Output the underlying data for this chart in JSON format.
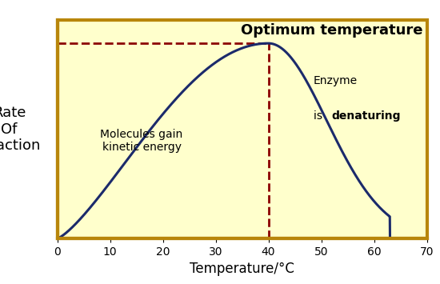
{
  "xlabel": "Temperature/°C",
  "ylabel_lines": [
    "Rate",
    "Of",
    "Reaction"
  ],
  "xlim": [
    0,
    70
  ],
  "ylim": [
    0,
    1.12
  ],
  "xticks": [
    0,
    10,
    20,
    30,
    40,
    50,
    60,
    70
  ],
  "optimum_temp": 40,
  "optimum_label": "Optimum temperature",
  "left_annotation": "Molecules gain\nkinetic energy",
  "curve_color": "#1b2a6b",
  "dashed_color": "#8b0000",
  "bg_color": "#ffffcc",
  "border_color": "#b8860b",
  "curve_linewidth": 2.2,
  "dashed_linewidth": 2.0,
  "annotation_fontsize": 10,
  "optimum_fontsize": 13,
  "ylabel_fontsize": 13,
  "xlabel_fontsize": 12,
  "tick_fontsize": 10,
  "border_linewidth": 3.0
}
